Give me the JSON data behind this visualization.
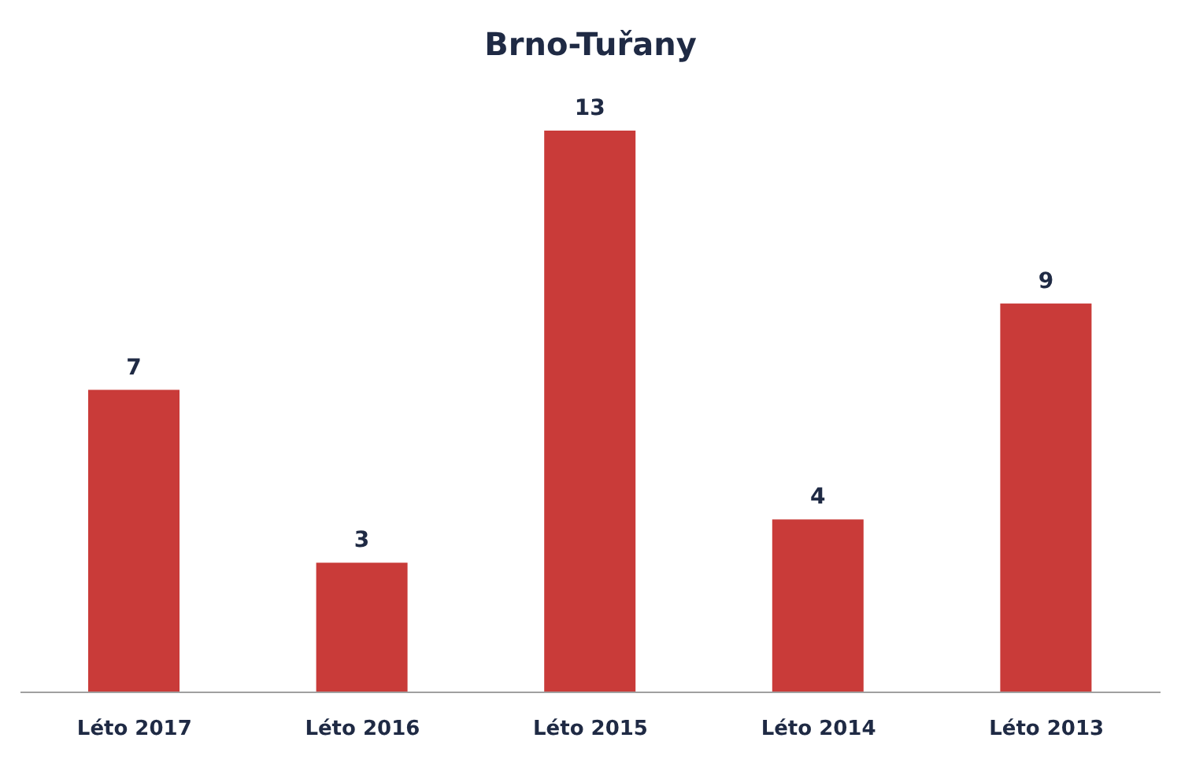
{
  "chart_data": {
    "type": "bar",
    "title": "Brno-Tuřany",
    "categories": [
      "Léto 2017",
      "Léto 2016",
      "Léto 2015",
      "Léto 2014",
      "Léto 2013"
    ],
    "values": [
      7,
      3,
      13,
      4,
      9
    ],
    "color": "#c93b39",
    "data_labels": true,
    "grid": false
  }
}
